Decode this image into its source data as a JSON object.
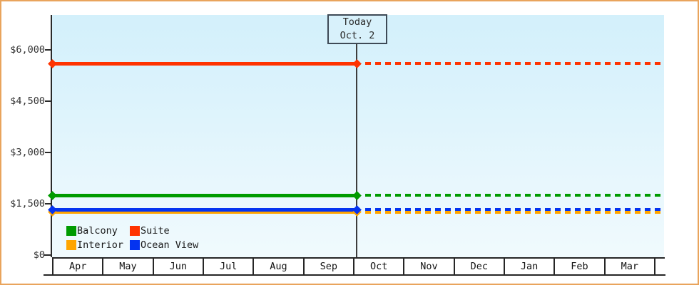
{
  "chart_data": {
    "type": "line",
    "title": "",
    "x_categories": [
      "Apr",
      "May",
      "Jun",
      "Jul",
      "Aug",
      "Sep",
      "Oct",
      "Nov",
      "Dec",
      "Jan",
      "Feb",
      "Mar"
    ],
    "today": {
      "line1": "Today",
      "line2": "Oct. 2",
      "month": "Oct",
      "day": 2
    },
    "y_axis": {
      "ticks": [
        {
          "label": "$6,000",
          "value": 6000
        },
        {
          "label": "$4,500",
          "value": 4500
        },
        {
          "label": "$3,000",
          "value": 3000
        },
        {
          "label": "$1,500",
          "value": 1500
        },
        {
          "label": "$0",
          "value": 0
        }
      ],
      "range": [
        0,
        6250
      ],
      "grid": false
    },
    "series": [
      {
        "name": "Suite",
        "color": "#ff3300",
        "value": 5600,
        "style_before_today": "solid",
        "style_after_today": "dotted"
      },
      {
        "name": "Balcony",
        "color": "#009b00",
        "value": 1750,
        "style_before_today": "solid",
        "style_after_today": "dotted"
      },
      {
        "name": "Interior",
        "color": "#ffa500",
        "value": 1260,
        "style_before_today": "solid",
        "style_after_today": "dotted"
      },
      {
        "name": "Ocean View",
        "color": "#0433f0",
        "value": 1330,
        "style_before_today": "solid",
        "style_after_today": "dotted"
      }
    ],
    "legend": [
      {
        "label": "Balcony",
        "color": "#009b00"
      },
      {
        "label": "Suite",
        "color": "#ff3300"
      },
      {
        "label": "Interior",
        "color": "#ffa500"
      },
      {
        "label": "Ocean View",
        "color": "#0433f0"
      }
    ],
    "legend_position": "bottom-left",
    "notes": "All series are flat horizontal lines across the full date range; lines are solid before today and dotted after today"
  },
  "colors": {
    "frame_border": "#e9a45c",
    "plot_background_top": "#d3f0fb",
    "plot_background_bottom": "#f0fafd",
    "axis": "#2a2a2a",
    "today_line": "#3d3d3d",
    "today_box_fill": "#d8f1fb",
    "today_box_border": "#3e4a56"
  }
}
